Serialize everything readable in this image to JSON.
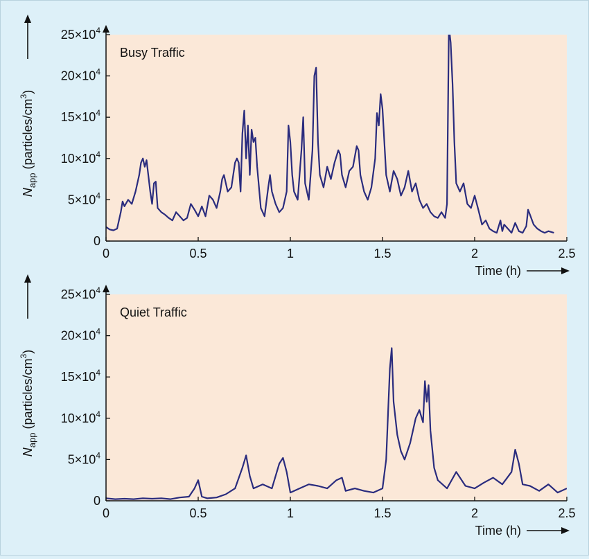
{
  "colors": {
    "background": "#ddf0f8",
    "plot_area": "#fbe8d8",
    "line": "#2a2c7e",
    "axis": "#111111"
  },
  "chart_data": [
    {
      "type": "line",
      "annotation": "Busy Traffic",
      "xlabel": "Time (h)",
      "ylabel_symbol": "N",
      "ylabel_subscript": "app",
      "ylabel_unit": "(particles/cm",
      "ylabel_unit_sup": "3",
      "ylabel_unit_close": ")",
      "xlim": [
        0,
        2.5
      ],
      "ylim": [
        0,
        250000
      ],
      "xticks": [
        0,
        0.5,
        1,
        1.5,
        2,
        2.5
      ],
      "xtick_labels": [
        "0",
        "0.5",
        "1",
        "1.5",
        "2",
        "2.5"
      ],
      "yticks": [
        0,
        50000,
        100000,
        150000,
        200000,
        250000
      ],
      "ytick_labels": [
        {
          "base": "0",
          "exp": ""
        },
        {
          "base": "5×10",
          "exp": "4"
        },
        {
          "base": "10×10",
          "exp": "4"
        },
        {
          "base": "15×10",
          "exp": "4"
        },
        {
          "base": "20×10",
          "exp": "4"
        },
        {
          "base": "25×10",
          "exp": "4"
        }
      ],
      "grid": false,
      "x": [
        0,
        0.02,
        0.04,
        0.06,
        0.08,
        0.09,
        0.1,
        0.12,
        0.14,
        0.16,
        0.18,
        0.19,
        0.2,
        0.21,
        0.22,
        0.24,
        0.25,
        0.26,
        0.27,
        0.28,
        0.3,
        0.32,
        0.34,
        0.36,
        0.38,
        0.4,
        0.42,
        0.44,
        0.46,
        0.48,
        0.5,
        0.52,
        0.54,
        0.56,
        0.58,
        0.6,
        0.62,
        0.63,
        0.64,
        0.66,
        0.68,
        0.7,
        0.71,
        0.72,
        0.73,
        0.74,
        0.75,
        0.76,
        0.77,
        0.78,
        0.79,
        0.8,
        0.81,
        0.82,
        0.84,
        0.86,
        0.88,
        0.89,
        0.9,
        0.92,
        0.94,
        0.96,
        0.98,
        0.99,
        1.0,
        1.01,
        1.02,
        1.04,
        1.06,
        1.07,
        1.08,
        1.1,
        1.12,
        1.13,
        1.14,
        1.15,
        1.16,
        1.18,
        1.2,
        1.22,
        1.24,
        1.26,
        1.27,
        1.28,
        1.3,
        1.32,
        1.34,
        1.36,
        1.37,
        1.38,
        1.4,
        1.42,
        1.44,
        1.46,
        1.47,
        1.48,
        1.49,
        1.5,
        1.52,
        1.54,
        1.56,
        1.58,
        1.6,
        1.62,
        1.64,
        1.66,
        1.68,
        1.7,
        1.72,
        1.74,
        1.76,
        1.78,
        1.8,
        1.82,
        1.84,
        1.85,
        1.86,
        1.87,
        1.88,
        1.89,
        1.9,
        1.92,
        1.94,
        1.96,
        1.98,
        2.0,
        2.02,
        2.04,
        2.06,
        2.08,
        2.1,
        2.12,
        2.14,
        2.15,
        2.16,
        2.18,
        2.2,
        2.22,
        2.24,
        2.26,
        2.28,
        2.29,
        2.3,
        2.32,
        2.34,
        2.36,
        2.38,
        2.4,
        2.43
      ],
      "y": [
        17000,
        14000,
        13000,
        15000,
        35000,
        48000,
        42000,
        50000,
        45000,
        60000,
        80000,
        95000,
        100000,
        90000,
        98000,
        60000,
        45000,
        70000,
        72000,
        40000,
        35000,
        32000,
        28000,
        25000,
        35000,
        30000,
        25000,
        28000,
        45000,
        38000,
        30000,
        42000,
        30000,
        55000,
        50000,
        40000,
        60000,
        75000,
        80000,
        60000,
        65000,
        95000,
        100000,
        95000,
        60000,
        130000,
        158000,
        100000,
        140000,
        80000,
        135000,
        120000,
        125000,
        90000,
        40000,
        30000,
        65000,
        80000,
        60000,
        45000,
        35000,
        40000,
        60000,
        140000,
        120000,
        80000,
        60000,
        50000,
        110000,
        150000,
        70000,
        50000,
        110000,
        200000,
        210000,
        120000,
        80000,
        65000,
        90000,
        75000,
        95000,
        110000,
        105000,
        80000,
        65000,
        85000,
        90000,
        115000,
        110000,
        80000,
        60000,
        50000,
        65000,
        100000,
        155000,
        140000,
        178000,
        160000,
        80000,
        60000,
        85000,
        75000,
        55000,
        65000,
        85000,
        60000,
        70000,
        50000,
        40000,
        45000,
        35000,
        30000,
        28000,
        35000,
        28000,
        45000,
        260000,
        240000,
        190000,
        120000,
        70000,
        60000,
        70000,
        45000,
        40000,
        55000,
        38000,
        20000,
        25000,
        15000,
        12000,
        10000,
        25000,
        12000,
        20000,
        15000,
        10000,
        22000,
        12000,
        10000,
        18000,
        38000,
        32000,
        20000,
        15000,
        12000,
        10000,
        12000,
        10000
      ]
    },
    {
      "type": "line",
      "annotation": "Quiet Traffic",
      "xlabel": "Time (h)",
      "ylabel_symbol": "N",
      "ylabel_subscript": "app",
      "ylabel_unit": "(particles/cm",
      "ylabel_unit_sup": "3",
      "ylabel_unit_close": ")",
      "xlim": [
        0,
        2.5
      ],
      "ylim": [
        0,
        250000
      ],
      "xticks": [
        0,
        0.5,
        1,
        1.5,
        2,
        2.5
      ],
      "xtick_labels": [
        "0",
        "0.5",
        "1",
        "1.5",
        "2",
        "2.5"
      ],
      "yticks": [
        0,
        50000,
        100000,
        150000,
        200000,
        250000
      ],
      "ytick_labels": [
        {
          "base": "0",
          "exp": ""
        },
        {
          "base": "5×10",
          "exp": "4"
        },
        {
          "base": "10×10",
          "exp": "4"
        },
        {
          "base": "15×10",
          "exp": "4"
        },
        {
          "base": "20×10",
          "exp": "4"
        },
        {
          "base": "25×10",
          "exp": "4"
        }
      ],
      "grid": false,
      "x": [
        0,
        0.05,
        0.1,
        0.15,
        0.2,
        0.25,
        0.3,
        0.35,
        0.4,
        0.45,
        0.48,
        0.5,
        0.52,
        0.55,
        0.6,
        0.65,
        0.7,
        0.74,
        0.76,
        0.78,
        0.8,
        0.85,
        0.9,
        0.94,
        0.96,
        0.98,
        1.0,
        1.05,
        1.1,
        1.15,
        1.2,
        1.25,
        1.28,
        1.3,
        1.35,
        1.4,
        1.45,
        1.5,
        1.52,
        1.54,
        1.55,
        1.56,
        1.58,
        1.6,
        1.62,
        1.65,
        1.68,
        1.7,
        1.72,
        1.73,
        1.74,
        1.75,
        1.76,
        1.78,
        1.8,
        1.85,
        1.9,
        1.95,
        2.0,
        2.05,
        2.1,
        2.15,
        2.2,
        2.22,
        2.24,
        2.26,
        2.3,
        2.35,
        2.4,
        2.45,
        2.5
      ],
      "y": [
        3000,
        2000,
        2500,
        2000,
        3000,
        2500,
        3000,
        2000,
        4000,
        5000,
        15000,
        25000,
        5000,
        3000,
        4000,
        8000,
        15000,
        40000,
        55000,
        30000,
        15000,
        20000,
        15000,
        45000,
        52000,
        35000,
        10000,
        15000,
        20000,
        18000,
        15000,
        25000,
        28000,
        12000,
        15000,
        12000,
        10000,
        15000,
        50000,
        160000,
        185000,
        120000,
        80000,
        60000,
        50000,
        70000,
        100000,
        110000,
        95000,
        145000,
        120000,
        140000,
        85000,
        40000,
        25000,
        15000,
        35000,
        18000,
        15000,
        22000,
        28000,
        20000,
        35000,
        62000,
        45000,
        20000,
        18000,
        12000,
        20000,
        10000,
        15000
      ]
    }
  ]
}
